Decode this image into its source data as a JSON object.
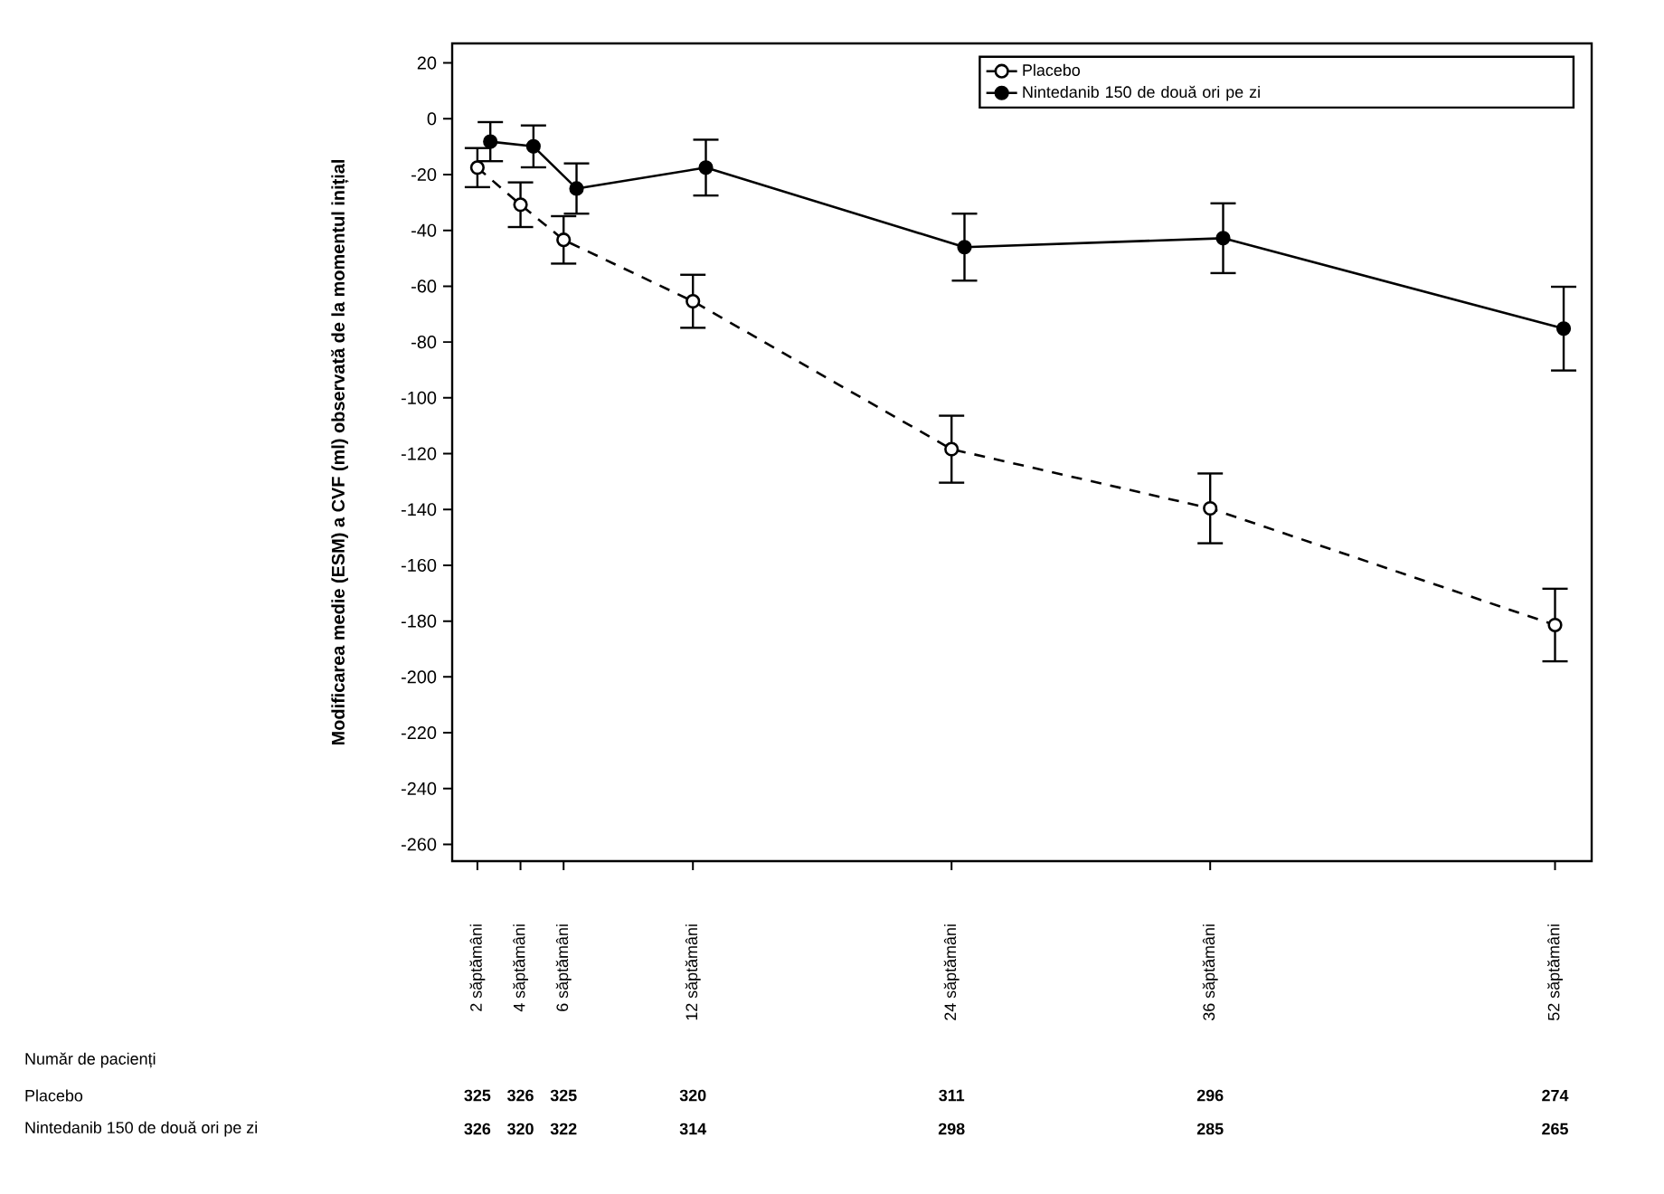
{
  "chart_data": {
    "type": "line",
    "ylabel": "Modificarea medie (ESM) a CVF (ml) observată de la momentul inițial",
    "xlim": [
      0.83,
      53.7
    ],
    "ylim": [
      -266,
      27
    ],
    "xticks": [
      {
        "value": 2,
        "label": "2 săptămâni"
      },
      {
        "value": 4,
        "label": "4 săptămâni"
      },
      {
        "value": 6,
        "label": "6 săptămâni"
      },
      {
        "value": 12,
        "label": "12 săptămâni"
      },
      {
        "value": 24,
        "label": "24 săptămâni"
      },
      {
        "value": 36,
        "label": "36 săptămâni"
      },
      {
        "value": 52,
        "label": "52 săptămâni"
      }
    ],
    "yticks": [
      20,
      0,
      -20,
      -40,
      -60,
      -80,
      -100,
      -120,
      -140,
      -160,
      -180,
      -200,
      -220,
      -240,
      -260
    ],
    "legend": "top right",
    "grid": false,
    "series": [
      {
        "name": "Placebo",
        "color": "#000000",
        "line_style": "dashed",
        "marker": "circle",
        "x": [
          2,
          4,
          6,
          12,
          24,
          36,
          52
        ],
        "values": [
          -17.5,
          -30.8,
          -43.4,
          -65.4,
          -118.4,
          -139.6,
          -181.4
        ],
        "errors": [
          7,
          8,
          8.5,
          9.5,
          12,
          12.5,
          13
        ]
      },
      {
        "name": "Nintedanib 150 de două ori pe zi",
        "color": "#000000",
        "line_style": "solid",
        "marker": "circle",
        "x": [
          2.6,
          4.6,
          6.6,
          12.6,
          24.6,
          36.6,
          52.4
        ],
        "values": [
          -8.2,
          -9.9,
          -25.0,
          -17.5,
          -46,
          -42.8,
          -75.2
        ],
        "errors": [
          7,
          7.5,
          9,
          10,
          12,
          12.5,
          15
        ]
      }
    ],
    "annotations": [
      "Număr de pacienți",
      "Placebo",
      "325",
      "326",
      "325",
      "320",
      "311",
      "296",
      "274",
      "Nintedanib 150 de două ori pe zi",
      "326",
      "320",
      "322",
      "314",
      "298",
      "285",
      "265"
    ]
  }
}
